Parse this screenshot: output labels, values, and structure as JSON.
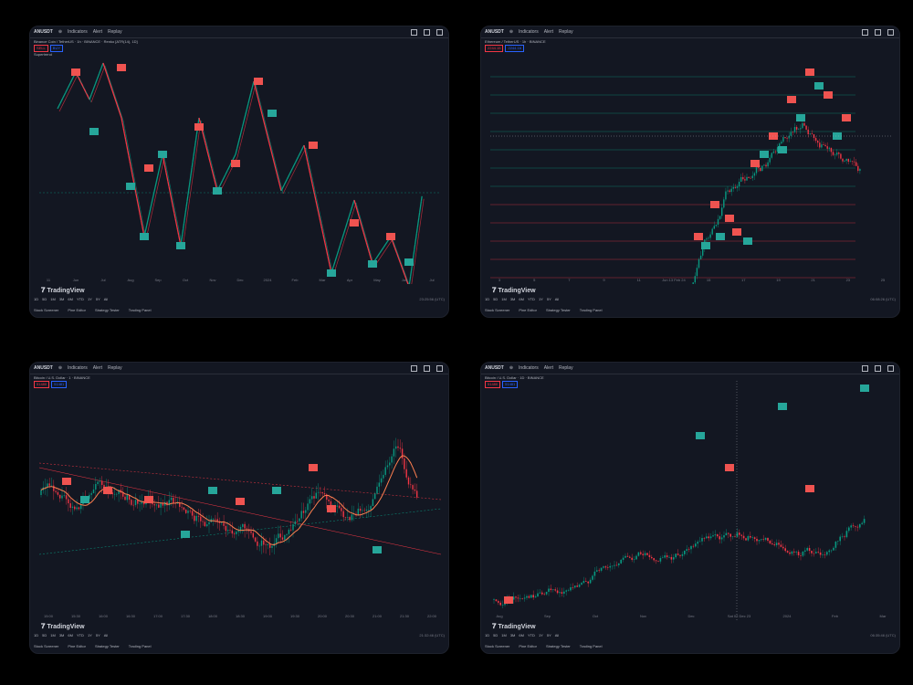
{
  "panels": [
    {
      "symbol": "ANUSDT",
      "legend": "Binance Coin / TetherUS · 1h · BINANCE · Renko [ATR(14), 1D]",
      "indicator": "Supertrend",
      "price_sell": "SELL",
      "price_buy": "BUY",
      "time_ticks": [
        "11",
        "Jun",
        "Jul",
        "Aug",
        "Sep",
        "Oct",
        "Nov",
        "Dec",
        "2024",
        "Feb",
        "Mar",
        "Apr",
        "May",
        "Jun",
        "Jul"
      ],
      "clock": "23:25:56 (UTC)"
    },
    {
      "symbol": "ANUSDT",
      "legend": "Ethereum / TetherUS · 1h · BINANCE",
      "indicator": "",
      "price_sell": "2244.15",
      "price_buy": "2244.16",
      "time_ticks": [
        "3",
        "5",
        "7",
        "9",
        "11",
        "Jun 13 Feb 24",
        "15",
        "17",
        "19",
        "21",
        "23",
        "25"
      ],
      "clock": "06:08:26 (UTC)"
    },
    {
      "symbol": "ANUSDT",
      "legend": "Bitcoin / U.S. Dollar · 1 · BINANCE",
      "indicator": "",
      "price_sell": "51480",
      "price_buy": "51481",
      "time_ticks": [
        "15:00",
        "15:30",
        "16:00",
        "16:30",
        "17:00",
        "17:30",
        "18:00",
        "18:30",
        "19:00",
        "19:30",
        "20:00",
        "20:30",
        "21:00",
        "21:30",
        "22:00"
      ],
      "clock": "21:32:46 (UTC)"
    },
    {
      "symbol": "ANUSDT",
      "legend": "Bitcoin / U.S. Dollar · 1D · BINANCE",
      "indicator": "",
      "price_sell": "51480",
      "price_buy": "51481",
      "time_ticks": [
        "Aug",
        "Sep",
        "Oct",
        "Nov",
        "Dec",
        "Sat 02 Dec 23",
        "2024",
        "Feb",
        "Mar"
      ],
      "clock": "06:35:46 (UTC)"
    }
  ],
  "toolbar": {
    "indicators": "Indicators",
    "alert": "Alert",
    "replay": "Replay"
  },
  "ranges": [
    "1D",
    "5D",
    "1M",
    "3M",
    "6M",
    "YTD",
    "1Y",
    "5Y",
    "All"
  ],
  "bottom_tabs": [
    "Stock Screener",
    "Pine Editor",
    "Strategy Tester",
    "Trading Panel"
  ],
  "brand": "TradingView",
  "colors": {
    "bg": "#131722",
    "up": "#089981",
    "down": "#f23645",
    "buy_tag": "#26a69a",
    "sell_tag": "#ef5350"
  }
}
